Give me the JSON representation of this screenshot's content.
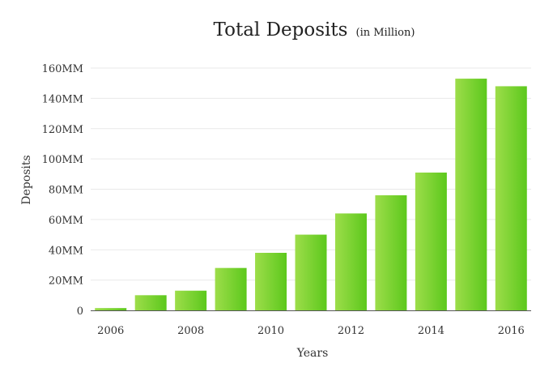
{
  "chart_data": {
    "type": "bar",
    "title": "Total Deposits",
    "subtitle": "(in Million)",
    "xlabel": "Years",
    "ylabel": "Deposits",
    "categories": [
      "2006",
      "2007",
      "2008",
      "2009",
      "2010",
      "2011",
      "2012",
      "2013",
      "2014",
      "2015",
      "2016"
    ],
    "x_tick_labels": [
      "2006",
      "2008",
      "2010",
      "2012",
      "2014",
      "2016"
    ],
    "values": [
      1.5,
      10,
      13,
      28,
      38,
      50,
      64,
      76,
      91,
      153,
      148
    ],
    "ylim": [
      0,
      160
    ],
    "y_ticks": [
      0,
      20,
      40,
      60,
      80,
      100,
      120,
      140,
      160
    ],
    "y_tick_labels": [
      "0",
      "20MM",
      "40MM",
      "60MM",
      "80MM",
      "100MM",
      "120MM",
      "140MM",
      "160MM"
    ],
    "grid": true,
    "legend": "none",
    "colors": {
      "bar_light": "#9ddd4a",
      "bar_dark": "#5cc81c",
      "grid": "#e9e9e9",
      "axis": "#555555"
    }
  }
}
